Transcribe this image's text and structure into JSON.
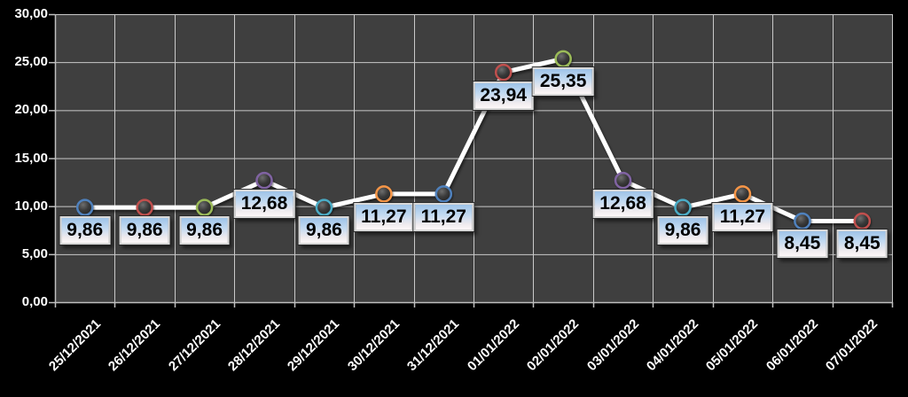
{
  "chart_data": {
    "type": "line",
    "title": "",
    "xlabel": "",
    "ylabel": "",
    "categories": [
      "25/12/2021",
      "26/12/2021",
      "27/12/2021",
      "28/12/2021",
      "29/12/2021",
      "30/12/2021",
      "31/12/2021",
      "01/01/2022",
      "02/01/2022",
      "03/01/2022",
      "04/01/2022",
      "05/01/2022",
      "06/01/2022",
      "07/01/2022"
    ],
    "series": [
      {
        "name": "",
        "values": [
          9.86,
          9.86,
          9.86,
          12.68,
          9.86,
          11.27,
          11.27,
          23.94,
          25.35,
          12.68,
          9.86,
          11.27,
          8.45,
          8.45
        ],
        "point_labels": [
          "9,86",
          "9,86",
          "9,86",
          "12,68",
          "9,86",
          "11,27",
          "11,27",
          "23,94",
          "25,35",
          "12,68",
          "9,86",
          "11,27",
          "8,45",
          "8,45"
        ]
      }
    ],
    "ylim": [
      0,
      30
    ],
    "ytick_values": [
      0,
      5,
      10,
      15,
      20,
      25,
      30
    ],
    "ytick_labels": [
      "0,00",
      "5,00",
      "10,00",
      "15,00",
      "20,00",
      "25,00",
      "30,00"
    ],
    "grid": true,
    "legend_position": "none",
    "marker_colors_vary_by_point": true
  },
  "colors": {
    "background": "#000000",
    "plot_background": "#3F3F3F",
    "gridline": "#C9C9C9",
    "axis_line": "#BFBFBF",
    "axis_text": "#FFFFFF",
    "series_line": "#FFFFFF",
    "marker_sphere_center": "#6E6E6E",
    "marker_sphere_mid": "#3A3A3A",
    "marker_sphere_edge": "#1B1B1B",
    "marker_rim_palette": [
      "#4F81BD",
      "#C0504D",
      "#9BBB59",
      "#8064A2",
      "#4BACC6",
      "#F79646"
    ],
    "data_label_text": "#000000",
    "data_label_fill_top": "#9EC3E8",
    "data_label_fill_bottom": "#FDF8F8",
    "data_label_border": "#D8D8D8"
  }
}
